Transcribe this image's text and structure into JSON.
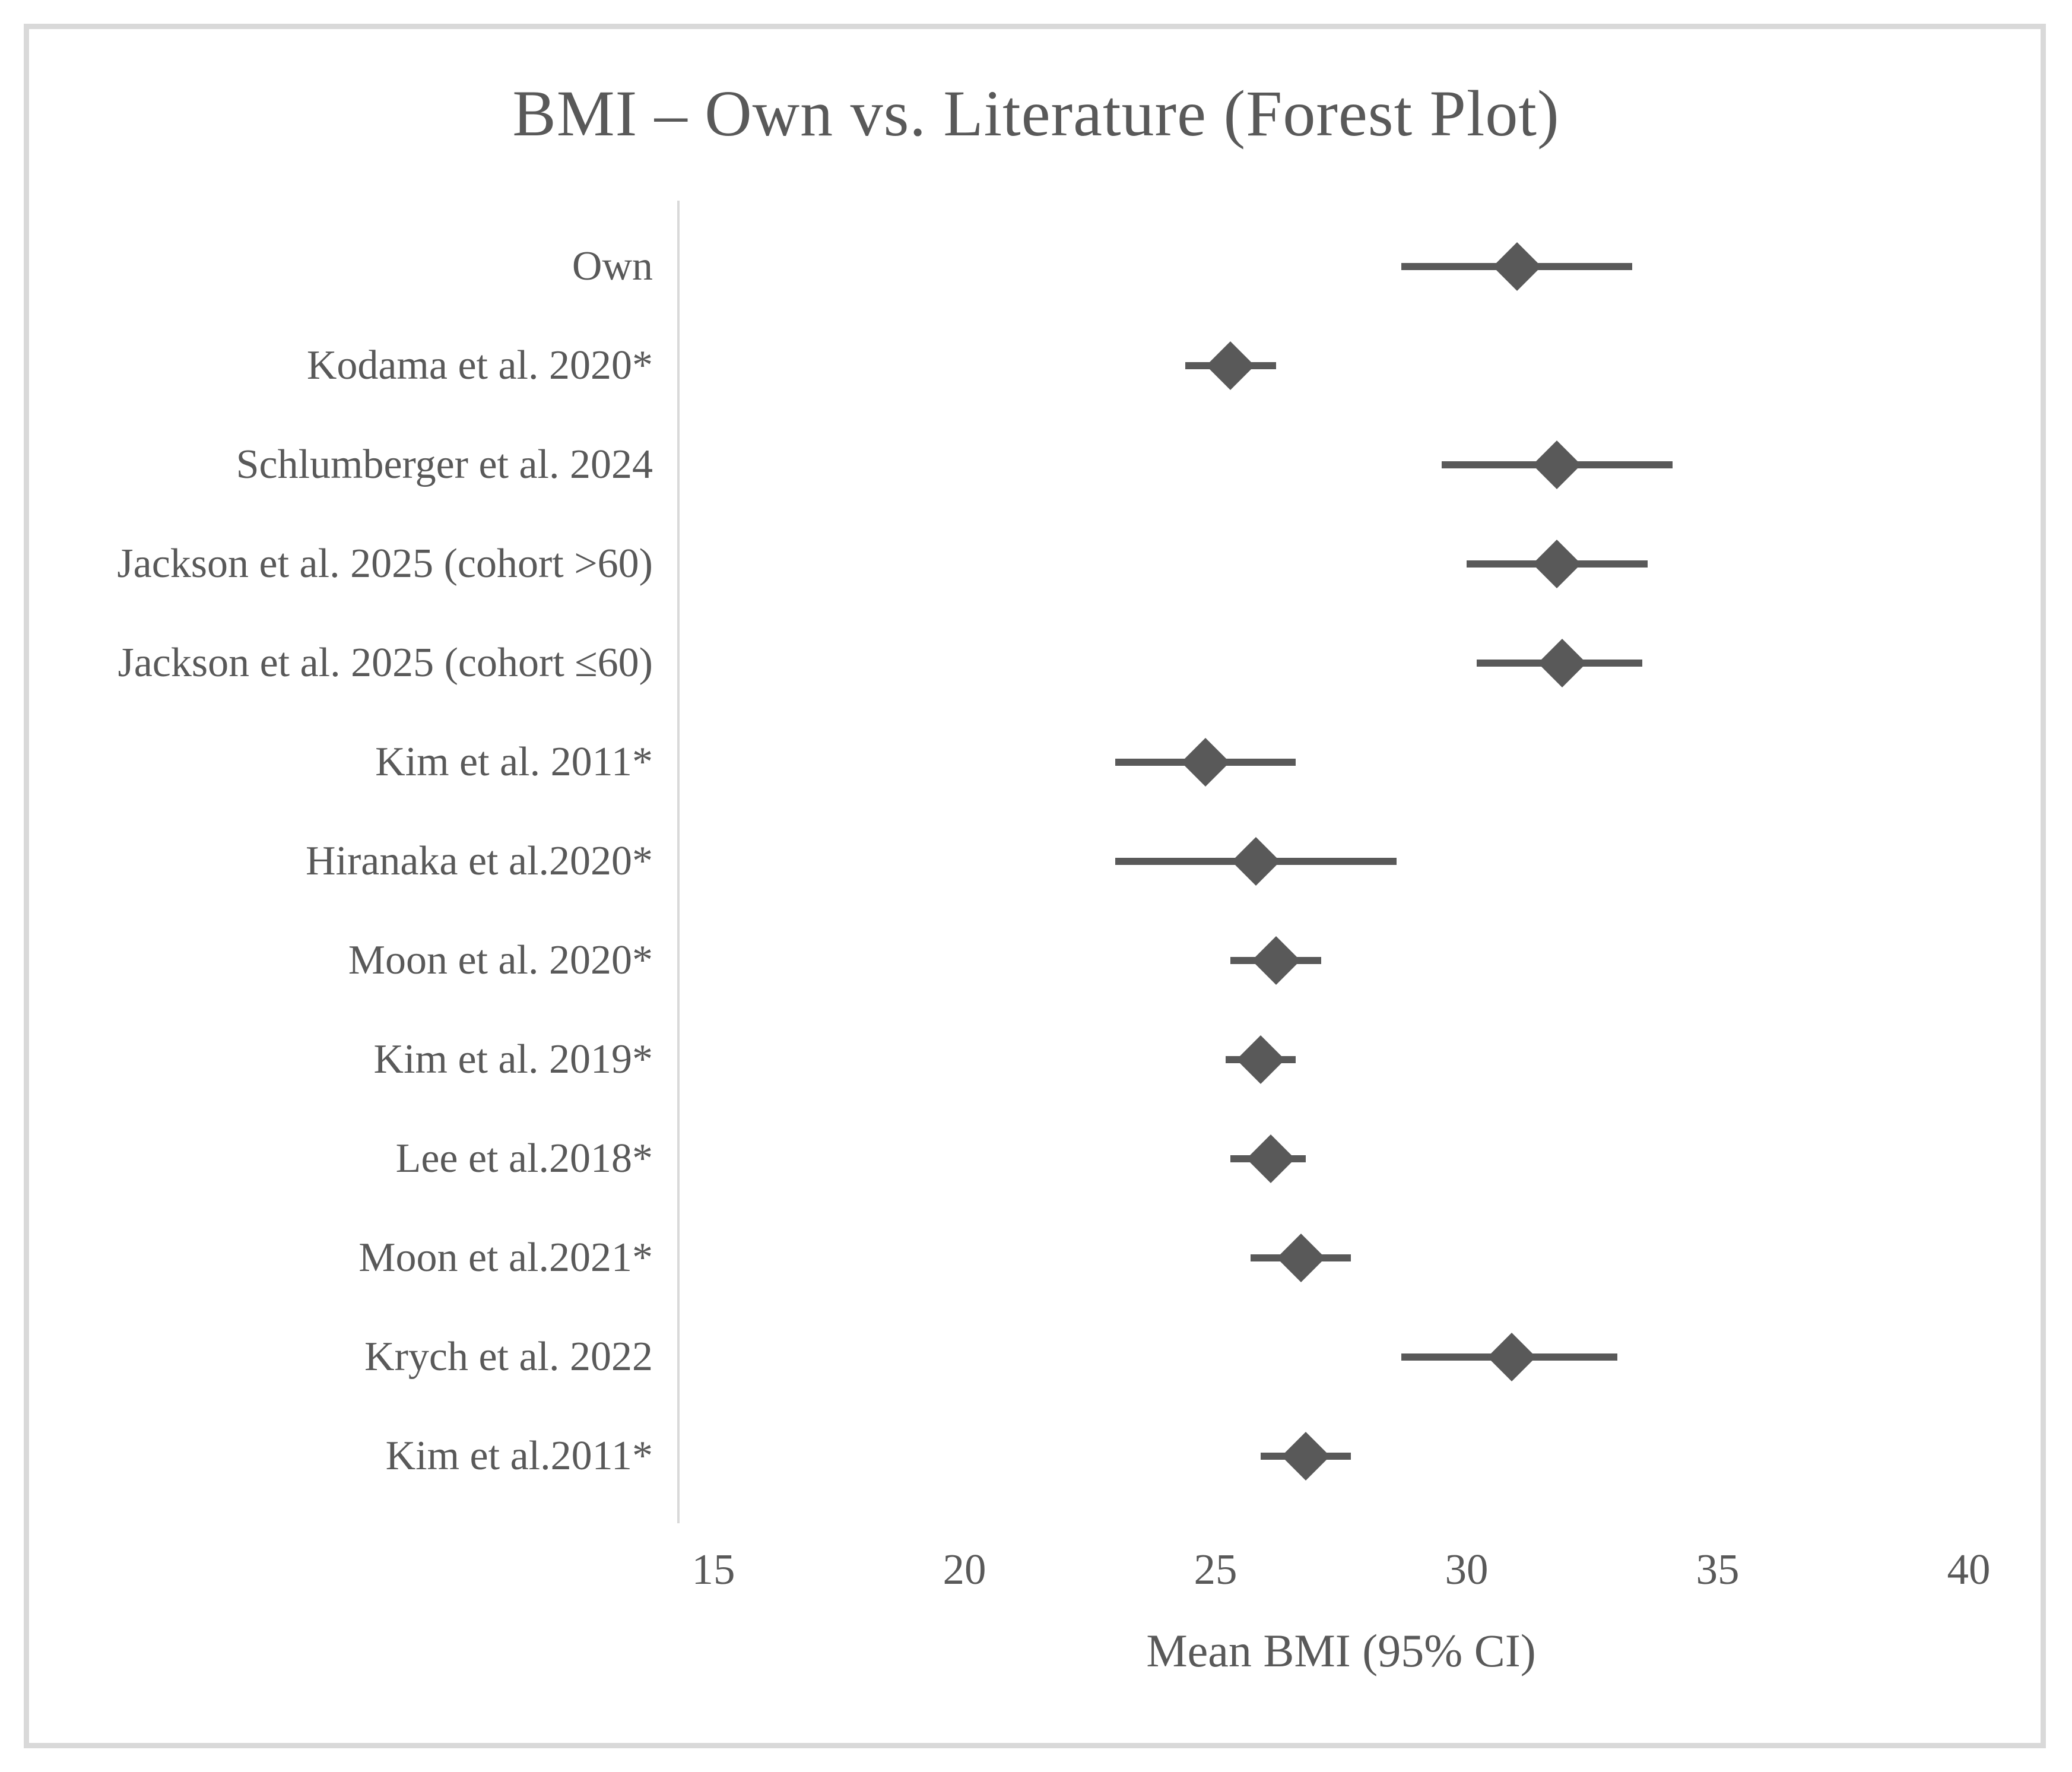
{
  "figure": {
    "ink_color": "#595959",
    "frame_color": "#d9d9d9"
  },
  "chart_data": {
    "type": "scatter",
    "subtype": "forest-plot",
    "title": "BMI – Own vs. Literature (Forest Plot)",
    "xlabel": "Mean BMI (95% CI)",
    "xlim": [
      15,
      40
    ],
    "xticks": [
      "15",
      "20",
      "25",
      "30",
      "35",
      "40"
    ],
    "grid": false,
    "legend": "none",
    "marker": "diamond",
    "marker_color": "#595959",
    "studies": [
      {
        "label": "Own",
        "mean": 31.0,
        "ci_low": 28.7,
        "ci_high": 33.3
      },
      {
        "label": "Kodama et al. 2020*",
        "mean": 25.3,
        "ci_low": 24.4,
        "ci_high": 26.2
      },
      {
        "label": "Schlumberger et al. 2024",
        "mean": 31.8,
        "ci_low": 29.5,
        "ci_high": 34.1
      },
      {
        "label": "Jackson et al. 2025 (cohort >60)",
        "mean": 31.8,
        "ci_low": 30.0,
        "ci_high": 33.6
      },
      {
        "label": "Jackson et al. 2025 (cohort ≤60)",
        "mean": 31.9,
        "ci_low": 30.2,
        "ci_high": 33.5
      },
      {
        "label": "Kim et al. 2011*",
        "mean": 24.8,
        "ci_low": 23.0,
        "ci_high": 26.6
      },
      {
        "label": "Hiranaka et al.2020*",
        "mean": 25.8,
        "ci_low": 23.0,
        "ci_high": 28.6
      },
      {
        "label": "Moon et al. 2020*",
        "mean": 26.2,
        "ci_low": 25.3,
        "ci_high": 27.1
      },
      {
        "label": "Kim et al. 2019*",
        "mean": 25.9,
        "ci_low": 25.2,
        "ci_high": 26.6
      },
      {
        "label": "Lee et al.2018*",
        "mean": 26.1,
        "ci_low": 25.3,
        "ci_high": 26.8
      },
      {
        "label": "Moon et al.2021*",
        "mean": 26.7,
        "ci_low": 25.7,
        "ci_high": 27.7
      },
      {
        "label": "Krych et al. 2022",
        "mean": 30.9,
        "ci_low": 28.7,
        "ci_high": 33.0
      },
      {
        "label": "Kim et al.2011*",
        "mean": 26.8,
        "ci_low": 25.9,
        "ci_high": 27.7
      }
    ]
  }
}
